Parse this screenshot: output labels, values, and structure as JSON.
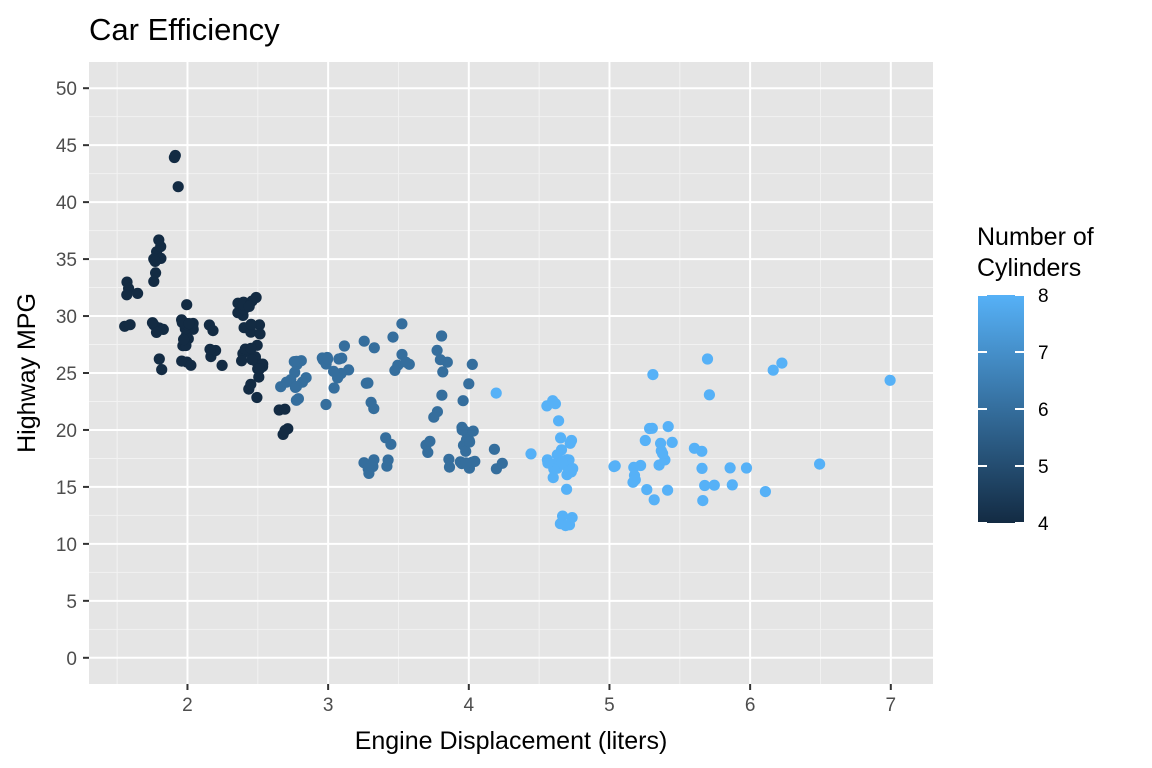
{
  "chart_data": {
    "type": "scatter",
    "title": "Car Efficiency",
    "xlabel": "Engine Displacement (liters)",
    "ylabel": "Highway MPG",
    "xlim": [
      1.3,
      7.3
    ],
    "ylim": [
      -2.3,
      52.3
    ],
    "x_ticks": [
      2,
      3,
      4,
      5,
      6,
      7
    ],
    "y_ticks": [
      0,
      5,
      10,
      15,
      20,
      25,
      30,
      35,
      40,
      45,
      50
    ],
    "grid": true,
    "background": "#e5e5e5",
    "legend": {
      "title_lines": [
        "Number of",
        "Cylinders"
      ],
      "type": "colorbar",
      "ticks": [
        4,
        5,
        6,
        7,
        8
      ],
      "color_low": "#132b43",
      "color_high": "#56b1f7",
      "placement": "right"
    },
    "color_scale": {
      "min": 4,
      "max": 8,
      "low": "#132b43",
      "high": "#56b1f7"
    },
    "points": [
      [
        1.8,
        29,
        4
      ],
      [
        1.8,
        29,
        4
      ],
      [
        2.0,
        31,
        4
      ],
      [
        2.0,
        30,
        4
      ],
      [
        2.8,
        26,
        6
      ],
      [
        2.8,
        26,
        6
      ],
      [
        3.1,
        27,
        6
      ],
      [
        1.8,
        26,
        4
      ],
      [
        1.8,
        25,
        4
      ],
      [
        2.0,
        28,
        4
      ],
      [
        2.0,
        27,
        4
      ],
      [
        2.8,
        25,
        6
      ],
      [
        2.8,
        25,
        6
      ],
      [
        3.1,
        25,
        6
      ],
      [
        3.1,
        25,
        6
      ],
      [
        2.8,
        24,
        6
      ],
      [
        3.1,
        25,
        6
      ],
      [
        4.2,
        23,
        8
      ],
      [
        5.3,
        20,
        8
      ],
      [
        5.3,
        15,
        8
      ],
      [
        5.3,
        20,
        8
      ],
      [
        5.7,
        17,
        8
      ],
      [
        6.0,
        17,
        8
      ],
      [
        5.7,
        26,
        8
      ],
      [
        5.7,
        23,
        8
      ],
      [
        6.2,
        26,
        8
      ],
      [
        6.2,
        25,
        8
      ],
      [
        7.0,
        24,
        8
      ],
      [
        5.3,
        19,
        8
      ],
      [
        5.3,
        14,
        8
      ],
      [
        5.7,
        15,
        8
      ],
      [
        6.5,
        17,
        8
      ],
      [
        2.4,
        27,
        4
      ],
      [
        2.4,
        30,
        4
      ],
      [
        3.1,
        26,
        6
      ],
      [
        3.5,
        29,
        6
      ],
      [
        3.6,
        26,
        6
      ],
      [
        2.4,
        24,
        4
      ],
      [
        3.0,
        24,
        6
      ],
      [
        3.3,
        22,
        6
      ],
      [
        3.3,
        22,
        6
      ],
      [
        3.3,
        24,
        6
      ],
      [
        3.3,
        24,
        6
      ],
      [
        3.3,
        17,
        6
      ],
      [
        3.8,
        22,
        6
      ],
      [
        3.8,
        21,
        6
      ],
      [
        3.8,
        23,
        6
      ],
      [
        4.0,
        23,
        6
      ],
      [
        3.7,
        19,
        6
      ],
      [
        3.7,
        18,
        6
      ],
      [
        3.9,
        17,
        6
      ],
      [
        3.9,
        17,
        6
      ],
      [
        4.7,
        19,
        8
      ],
      [
        4.7,
        19,
        8
      ],
      [
        4.7,
        12,
        8
      ],
      [
        5.2,
        17,
        8
      ],
      [
        5.2,
        15,
        8
      ],
      [
        3.9,
        17,
        6
      ],
      [
        4.7,
        17,
        8
      ],
      [
        4.7,
        12,
        8
      ],
      [
        4.7,
        17,
        8
      ],
      [
        5.2,
        16,
        8
      ],
      [
        5.7,
        18,
        8
      ],
      [
        5.9,
        15,
        8
      ],
      [
        4.7,
        16,
        8
      ],
      [
        4.7,
        12,
        8
      ],
      [
        4.7,
        17,
        8
      ],
      [
        4.7,
        17,
        8
      ],
      [
        4.7,
        16,
        8
      ],
      [
        4.7,
        12,
        8
      ],
      [
        4.7,
        15,
        8
      ],
      [
        5.2,
        16,
        8
      ],
      [
        5.2,
        17,
        8
      ],
      [
        5.7,
        15,
        8
      ],
      [
        5.9,
        17,
        8
      ],
      [
        4.6,
        17,
        8
      ],
      [
        5.4,
        18,
        8
      ],
      [
        5.4,
        17,
        8
      ],
      [
        4.0,
        19,
        6
      ],
      [
        4.0,
        17,
        6
      ],
      [
        4.0,
        19,
        6
      ],
      [
        4.0,
        19,
        6
      ],
      [
        4.6,
        17,
        8
      ],
      [
        5.0,
        17,
        8
      ],
      [
        4.2,
        17,
        6
      ],
      [
        4.2,
        17,
        6
      ],
      [
        4.6,
        16,
        8
      ],
      [
        4.6,
        17,
        8
      ],
      [
        4.6,
        17,
        8
      ],
      [
        5.4,
        15,
        8
      ],
      [
        5.4,
        17,
        8
      ],
      [
        3.8,
        26,
        6
      ],
      [
        3.8,
        25,
        6
      ],
      [
        4.0,
        26,
        6
      ],
      [
        4.0,
        24,
        6
      ],
      [
        4.6,
        21,
        8
      ],
      [
        4.6,
        22,
        8
      ],
      [
        4.6,
        23,
        8
      ],
      [
        4.6,
        22,
        8
      ],
      [
        5.4,
        20,
        8
      ],
      [
        1.6,
        33,
        4
      ],
      [
        1.6,
        32,
        4
      ],
      [
        1.6,
        32,
        4
      ],
      [
        1.6,
        29,
        4
      ],
      [
        1.6,
        32,
        4
      ],
      [
        1.8,
        34,
        4
      ],
      [
        1.8,
        36,
        4
      ],
      [
        1.8,
        36,
        4
      ],
      [
        2.0,
        29,
        4
      ],
      [
        2.4,
        26,
        4
      ],
      [
        2.4,
        27,
        4
      ],
      [
        2.4,
        30,
        4
      ],
      [
        2.4,
        31,
        4
      ],
      [
        2.5,
        26,
        4
      ],
      [
        2.5,
        26,
        4
      ],
      [
        3.3,
        28,
        6
      ],
      [
        2.0,
        26,
        4
      ],
      [
        2.0,
        29,
        4
      ],
      [
        2.0,
        28,
        4
      ],
      [
        2.0,
        27,
        4
      ],
      [
        2.7,
        24,
        6
      ],
      [
        2.7,
        24,
        6
      ],
      [
        2.7,
        24,
        6
      ],
      [
        3.0,
        22,
        6
      ],
      [
        3.7,
        19,
        6
      ],
      [
        4.0,
        20,
        6
      ],
      [
        4.7,
        17,
        8
      ],
      [
        4.7,
        12,
        8
      ],
      [
        4.7,
        19,
        8
      ],
      [
        4.7,
        18,
        8
      ],
      [
        5.7,
        14,
        8
      ],
      [
        6.1,
        15,
        8
      ],
      [
        4.0,
        18,
        6
      ],
      [
        4.2,
        18,
        6
      ],
      [
        4.4,
        18,
        8
      ],
      [
        4.6,
        18,
        8
      ],
      [
        5.4,
        18,
        8
      ],
      [
        5.4,
        19,
        8
      ],
      [
        5.4,
        19,
        8
      ],
      [
        4.0,
        19,
        6
      ],
      [
        4.0,
        19,
        6
      ],
      [
        4.6,
        17,
        8
      ],
      [
        5.0,
        17,
        8
      ],
      [
        2.4,
        29,
        4
      ],
      [
        2.4,
        27,
        4
      ],
      [
        2.5,
        31,
        4
      ],
      [
        2.5,
        32,
        4
      ],
      [
        3.5,
        27,
        6
      ],
      [
        3.5,
        26,
        6
      ],
      [
        3.0,
        26,
        6
      ],
      [
        3.0,
        25,
        6
      ],
      [
        3.5,
        25,
        6
      ],
      [
        3.3,
        17,
        6
      ],
      [
        3.3,
        17,
        6
      ],
      [
        4.0,
        20,
        6
      ],
      [
        5.6,
        18,
        8
      ],
      [
        3.1,
        26,
        6
      ],
      [
        3.8,
        26,
        6
      ],
      [
        3.8,
        27,
        6
      ],
      [
        3.8,
        28,
        6
      ],
      [
        5.3,
        25,
        8
      ],
      [
        2.5,
        25,
        4
      ],
      [
        2.5,
        24,
        4
      ],
      [
        2.5,
        27,
        4
      ],
      [
        2.5,
        25,
        4
      ],
      [
        2.5,
        26,
        4
      ],
      [
        2.5,
        23,
        4
      ],
      [
        2.2,
        26,
        4
      ],
      [
        2.2,
        26,
        4
      ],
      [
        2.5,
        26,
        4
      ],
      [
        2.5,
        26,
        4
      ],
      [
        2.5,
        25,
        4
      ],
      [
        2.5,
        27,
        4
      ],
      [
        2.5,
        25,
        4
      ],
      [
        2.7,
        20,
        4
      ],
      [
        2.7,
        20,
        4
      ],
      [
        3.4,
        19,
        6
      ],
      [
        3.4,
        17,
        6
      ],
      [
        4.0,
        20,
        6
      ],
      [
        4.7,
        17,
        8
      ],
      [
        2.2,
        29,
        4
      ],
      [
        2.2,
        27,
        4
      ],
      [
        2.4,
        31,
        4
      ],
      [
        2.4,
        31,
        4
      ],
      [
        3.0,
        26,
        6
      ],
      [
        3.0,
        26,
        6
      ],
      [
        3.5,
        28,
        6
      ],
      [
        2.2,
        27,
        4
      ],
      [
        2.2,
        29,
        4
      ],
      [
        2.4,
        31,
        4
      ],
      [
        2.4,
        31,
        4
      ],
      [
        3.0,
        26,
        6
      ],
      [
        3.0,
        26,
        6
      ],
      [
        3.3,
        27,
        6
      ],
      [
        1.8,
        35,
        4
      ],
      [
        1.8,
        37,
        4
      ],
      [
        1.8,
        35,
        4
      ],
      [
        1.6,
        29,
        4
      ],
      [
        1.8,
        29,
        4
      ],
      [
        1.8,
        35,
        4
      ],
      [
        1.8,
        33,
        4
      ],
      [
        3.3,
        17,
        6
      ],
      [
        3.3,
        16,
        6
      ],
      [
        4.0,
        17,
        6
      ],
      [
        4.0,
        17,
        6
      ],
      [
        4.0,
        20,
        6
      ],
      [
        2.7,
        20,
        4
      ],
      [
        2.7,
        22,
        4
      ],
      [
        2.7,
        22,
        4
      ],
      [
        3.4,
        17,
        6
      ],
      [
        3.4,
        19,
        6
      ],
      [
        4.0,
        17,
        6
      ],
      [
        4.0,
        17,
        6
      ],
      [
        2.0,
        29,
        4
      ],
      [
        2.0,
        29,
        4
      ],
      [
        2.8,
        23,
        6
      ],
      [
        2.8,
        24,
        6
      ],
      [
        1.9,
        44,
        4
      ],
      [
        2.0,
        29,
        4
      ],
      [
        2.0,
        26,
        4
      ],
      [
        2.0,
        29,
        4
      ],
      [
        2.0,
        29,
        4
      ],
      [
        2.5,
        29,
        4
      ],
      [
        2.5,
        29,
        4
      ],
      [
        2.8,
        23,
        6
      ],
      [
        2.8,
        24,
        6
      ],
      [
        1.9,
        44,
        4
      ],
      [
        1.9,
        41,
        4
      ],
      [
        2.0,
        29,
        4
      ],
      [
        2.0,
        26,
        4
      ],
      [
        2.5,
        28,
        4
      ],
      [
        2.5,
        29,
        4
      ],
      [
        1.8,
        29,
        4
      ],
      [
        1.8,
        29,
        4
      ],
      [
        2.0,
        28,
        4
      ],
      [
        2.0,
        29,
        4
      ],
      [
        2.8,
        26,
        6
      ],
      [
        2.8,
        26,
        6
      ],
      [
        3.6,
        26,
        6
      ]
    ]
  }
}
